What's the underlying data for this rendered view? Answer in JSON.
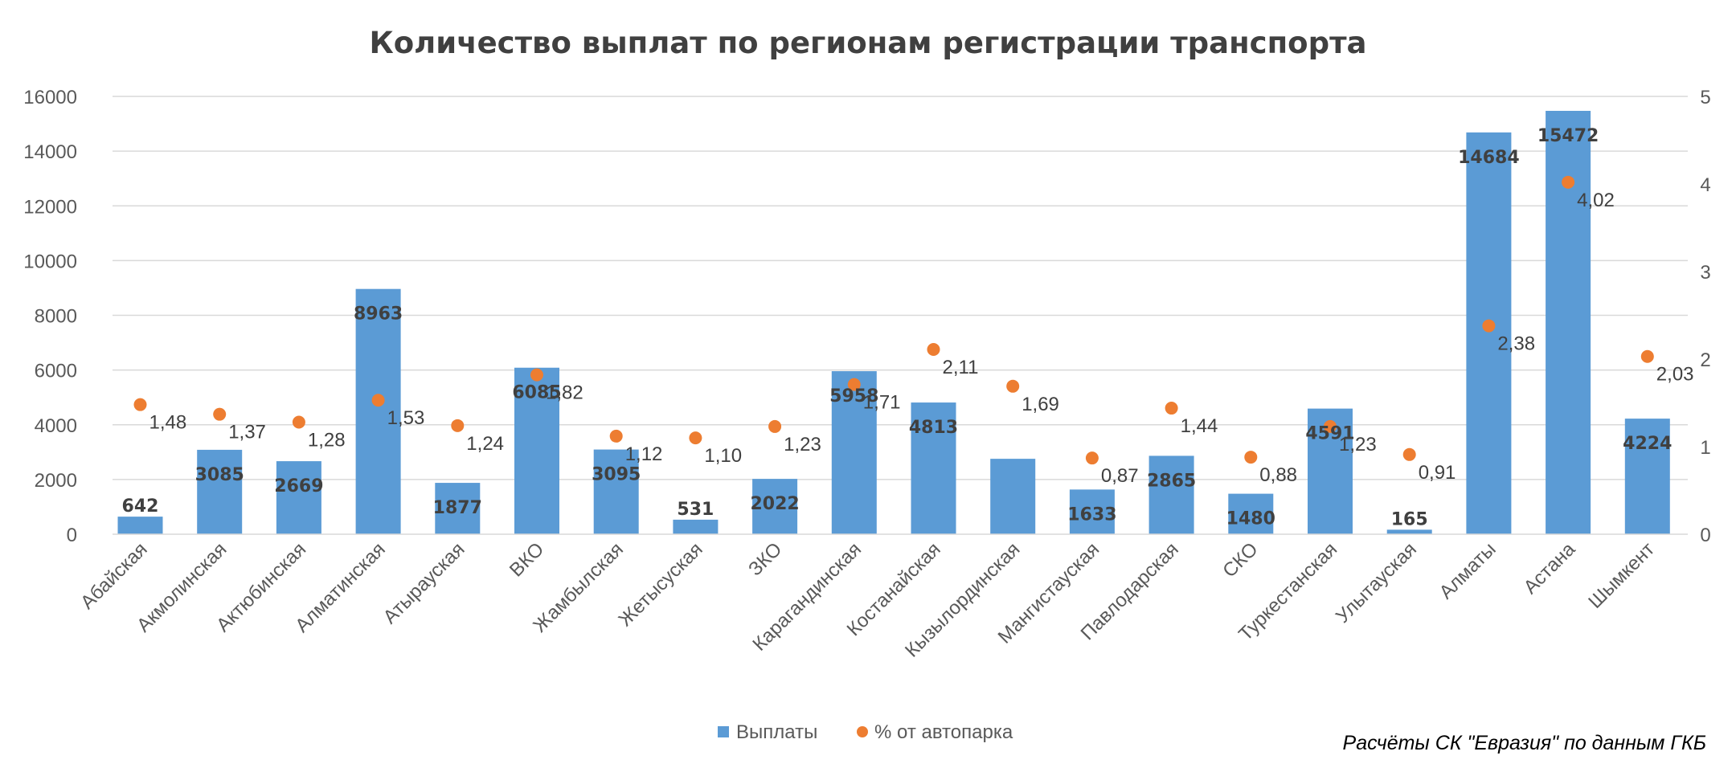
{
  "chart_data": {
    "type": "bar",
    "title": "Количество выплат по регионам регистрации транспорта",
    "categories": [
      "Абайская",
      "Акмолинская",
      "Актюбинская",
      "Алматинская",
      "Атырауская",
      "ВКО",
      "Жамбылская",
      "Жетысуская",
      "ЗКО",
      "Карагандинская",
      "Костанайская",
      "Кызылординская",
      "Мангистауская",
      "Павлодарская",
      "СКО",
      "Туркестанская",
      "Улытауская",
      "Алматы",
      "Астана",
      "Шымкент"
    ],
    "series": [
      {
        "name": "Выплаты",
        "type": "bar",
        "axis": "left",
        "color": "#5B9BD5",
        "values": [
          642,
          3085,
          2669,
          8963,
          1877,
          6085,
          3095,
          531,
          2022,
          5958,
          4813,
          2756,
          1633,
          2865,
          1480,
          4591,
          165,
          14684,
          15472,
          4224
        ],
        "labels": [
          "642",
          "3085",
          "2669",
          "8963",
          "1877",
          "6085",
          "3095",
          "531",
          "2022",
          "5958",
          "4813",
          "2756",
          "1633",
          "2865",
          "1480",
          "4591",
          "165",
          "14684",
          "15472",
          "4224"
        ],
        "labels_shown": [
          true,
          true,
          true,
          true,
          true,
          true,
          true,
          true,
          true,
          true,
          true,
          false,
          true,
          true,
          true,
          true,
          true,
          true,
          true,
          true
        ]
      },
      {
        "name": "% от автопарка",
        "type": "scatter",
        "axis": "right",
        "color": "#ED7D31",
        "values": [
          1.48,
          1.37,
          1.28,
          1.53,
          1.24,
          1.82,
          1.12,
          1.1,
          1.23,
          1.71,
          2.11,
          1.69,
          0.87,
          1.44,
          0.88,
          1.23,
          0.91,
          2.38,
          4.02,
          2.03
        ],
        "labels": [
          "1,48",
          "1,37",
          "1,28",
          "1,53",
          "1,24",
          "1,82",
          "1,12",
          "1,10",
          "1,23",
          "1,71",
          "2,11",
          "1,69",
          "0,87",
          "1,44",
          "0,88",
          "1,23",
          "0,91",
          "2,38",
          "4,02",
          "2,03"
        ]
      }
    ],
    "y_left": {
      "ylim": [
        0,
        16000
      ],
      "ticks": [
        "0",
        "2000",
        "4000",
        "6000",
        "8000",
        "10000",
        "12000",
        "14000",
        "16000"
      ]
    },
    "y_right": {
      "ylim": [
        0,
        5
      ],
      "ticks": [
        "0",
        "1",
        "2",
        "3",
        "4",
        "5"
      ]
    },
    "grid": true,
    "legend": "bottom"
  },
  "footnote": "Расчёты СК \"Евразия\" по данным ГКБ"
}
